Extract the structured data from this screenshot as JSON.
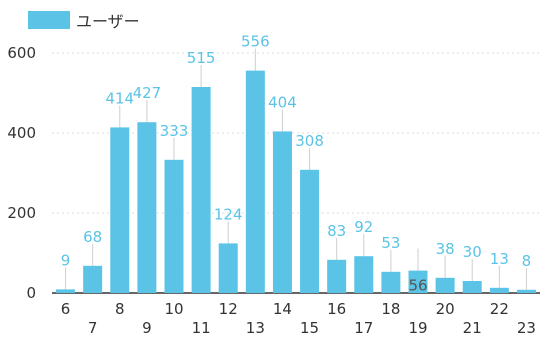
{
  "colors": {
    "bar": "#5bc4e6",
    "label": "#5bc4e6",
    "label_inside": "#555555",
    "grid": "#dddddd",
    "axis": "#333333"
  },
  "chart_data": {
    "type": "bar",
    "legend_position": "top-left",
    "grid": true,
    "categories": [
      "6",
      "7",
      "8",
      "9",
      "10",
      "11",
      "12",
      "13",
      "14",
      "15",
      "16",
      "17",
      "18",
      "19",
      "20",
      "21",
      "22",
      "23"
    ],
    "series": [
      {
        "name": "ユーザー",
        "values": [
          9,
          68,
          414,
          427,
          333,
          515,
          124,
          556,
          404,
          308,
          83,
          92,
          53,
          56,
          38,
          30,
          13,
          8
        ]
      }
    ],
    "ylim": [
      0,
      600
    ],
    "yticks": [
      "0",
      "200",
      "400",
      "600"
    ],
    "title": "",
    "xlabel": "",
    "ylabel": ""
  }
}
